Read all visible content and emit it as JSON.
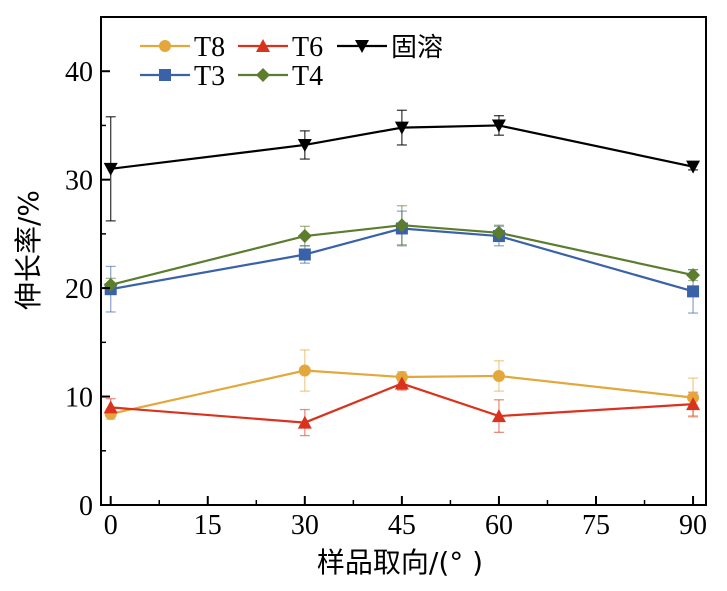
{
  "chart_data": {
    "type": "line",
    "xlabel": "样品取向/(°  )",
    "ylabel": "伸长率/%",
    "x": [
      0,
      30,
      45,
      60,
      90
    ],
    "x_ticks": [
      0,
      15,
      30,
      45,
      60,
      75,
      90
    ],
    "y_ticks": [
      0,
      10,
      20,
      30,
      40
    ],
    "xlim": [
      -1.5,
      92
    ],
    "ylim": [
      0,
      45
    ],
    "grid": false,
    "legend_position": "top-left",
    "series": [
      {
        "name": "T8",
        "color": "#E3A73B",
        "marker": "circle",
        "values": [
          8.4,
          12.4,
          11.8,
          11.9,
          9.9
        ],
        "errors": [
          0.5,
          1.9,
          0.5,
          1.4,
          1.8
        ]
      },
      {
        "name": "T6",
        "color": "#D9331E",
        "marker": "triangle-up",
        "values": [
          9.0,
          7.6,
          11.2,
          8.2,
          9.3
        ],
        "errors": [
          0.8,
          1.2,
          0.6,
          1.5,
          1.1
        ]
      },
      {
        "name": "固溶",
        "color": "#000000",
        "marker": "triangle-down",
        "values": [
          31.0,
          33.2,
          34.8,
          35.0,
          31.2
        ],
        "errors": [
          4.8,
          1.3,
          1.6,
          0.9,
          0.3
        ]
      },
      {
        "name": "T3",
        "color": "#3A62A8",
        "marker": "square",
        "values": [
          19.9,
          23.1,
          25.5,
          24.8,
          19.7
        ],
        "errors": [
          2.1,
          0.8,
          1.6,
          0.9,
          2.0
        ]
      },
      {
        "name": "T4",
        "color": "#5C7C2E",
        "marker": "diamond",
        "values": [
          20.3,
          24.8,
          25.8,
          25.1,
          21.2
        ],
        "errors": [
          0.6,
          0.9,
          1.8,
          0.7,
          0.5
        ]
      }
    ]
  }
}
